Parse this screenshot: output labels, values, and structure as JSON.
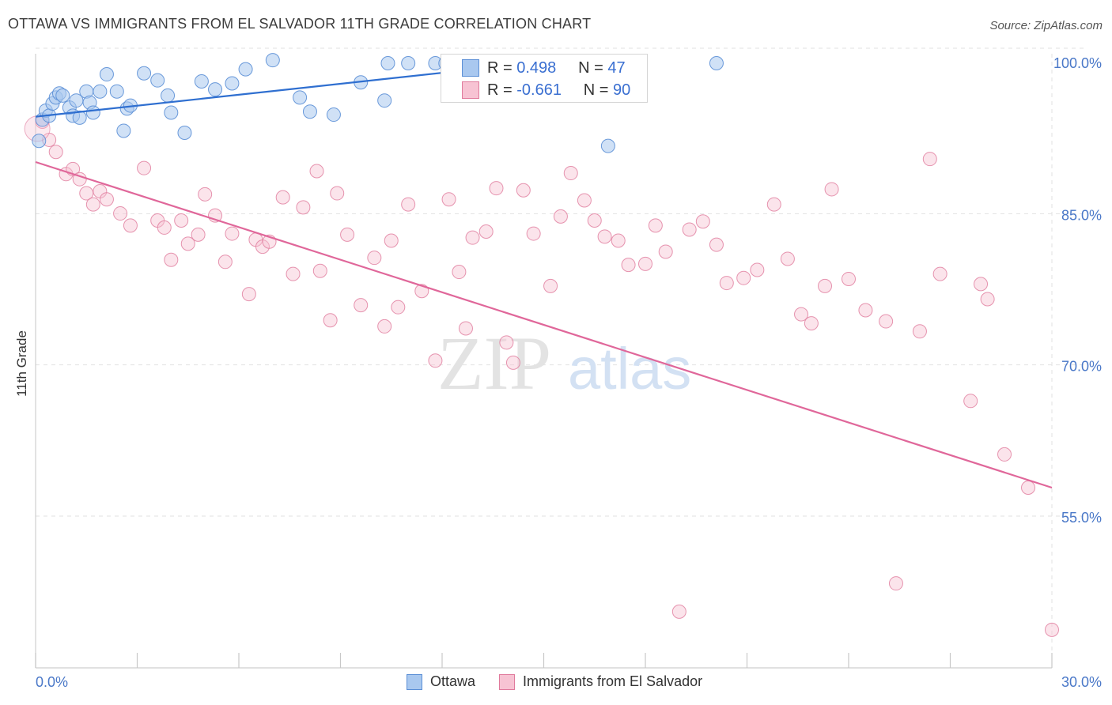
{
  "title": "OTTAWA VS IMMIGRANTS FROM EL SALVADOR 11TH GRADE CORRELATION CHART",
  "source": "Source: ZipAtlas.com",
  "watermark": {
    "zip": "ZIP",
    "atlas": "atlas"
  },
  "colors": {
    "ottawa_fill": "#a9c8ef",
    "ottawa_stroke": "#5b8fd6",
    "ottawa_line": "#2f6fd0",
    "elsal_fill": "#f7c3d3",
    "elsal_stroke": "#e07a9c",
    "elsal_line": "#e0679a",
    "tick_label": "#4a78c8"
  },
  "stats": {
    "r_label": "R =",
    "n_label": "N =",
    "rows": [
      {
        "r": "0.498",
        "n": "47"
      },
      {
        "r": "-0.661",
        "n": "90"
      }
    ]
  },
  "legend": [
    {
      "label": "Ottawa"
    },
    {
      "label": "Immigrants from El Salvador"
    }
  ],
  "chart_data": {
    "type": "scatter",
    "title": "OTTAWA VS IMMIGRANTS FROM EL SALVADOR 11TH GRADE CORRELATION CHART",
    "xlabel": "",
    "ylabel": "11th Grade",
    "xlim": [
      0,
      30
    ],
    "ylim": [
      38,
      101
    ],
    "x_tick_labels": [
      "0.0%",
      "30.0%"
    ],
    "y_ticks": [
      55,
      70,
      85,
      100
    ],
    "y_tick_labels": [
      "55.0%",
      "70.0%",
      "85.0%",
      "100.0%"
    ],
    "grid": true,
    "series": [
      {
        "name": "Ottawa",
        "r": 0.498,
        "n": 47,
        "trend": {
          "x": [
            0,
            16
          ],
          "y": [
            94.7,
            100.5
          ]
        },
        "points": [
          [
            0.1,
            92.3
          ],
          [
            0.2,
            94.4
          ],
          [
            0.3,
            95.3
          ],
          [
            0.4,
            94.8
          ],
          [
            0.5,
            96.0
          ],
          [
            0.6,
            96.6
          ],
          [
            0.7,
            97.0
          ],
          [
            0.8,
            96.8
          ],
          [
            1.0,
            95.6
          ],
          [
            1.1,
            94.8
          ],
          [
            1.2,
            96.3
          ],
          [
            1.3,
            94.6
          ],
          [
            1.5,
            97.2
          ],
          [
            1.6,
            96.1
          ],
          [
            1.7,
            95.1
          ],
          [
            1.9,
            97.2
          ],
          [
            2.1,
            98.9
          ],
          [
            2.4,
            97.2
          ],
          [
            2.6,
            93.3
          ],
          [
            2.7,
            95.5
          ],
          [
            2.8,
            95.8
          ],
          [
            3.2,
            99.0
          ],
          [
            3.6,
            98.3
          ],
          [
            3.9,
            96.8
          ],
          [
            4.0,
            95.1
          ],
          [
            4.4,
            93.1
          ],
          [
            4.9,
            98.2
          ],
          [
            5.3,
            97.4
          ],
          [
            5.8,
            98.0
          ],
          [
            6.2,
            99.4
          ],
          [
            7.0,
            100.3
          ],
          [
            7.8,
            96.6
          ],
          [
            8.1,
            95.2
          ],
          [
            8.8,
            94.9
          ],
          [
            9.6,
            98.1
          ],
          [
            10.3,
            96.3
          ],
          [
            10.4,
            100.0
          ],
          [
            11.0,
            100.0
          ],
          [
            11.8,
            100.0
          ],
          [
            12.1,
            100.0
          ],
          [
            13.2,
            98.9
          ],
          [
            14.2,
            99.4
          ],
          [
            15.0,
            100.0
          ],
          [
            15.8,
            100.0
          ],
          [
            16.9,
            91.8
          ],
          [
            17.4,
            100.0
          ],
          [
            20.1,
            100.0
          ]
        ]
      },
      {
        "name": "Immigrants from El Salvador",
        "r": -0.661,
        "n": 90,
        "trend": {
          "x": [
            0,
            30
          ],
          "y": [
            90.2,
            57.9
          ]
        },
        "points": [
          [
            0.2,
            94.2
          ],
          [
            0.4,
            92.4
          ],
          [
            0.6,
            91.2
          ],
          [
            0.9,
            89.0
          ],
          [
            1.1,
            89.5
          ],
          [
            1.3,
            88.5
          ],
          [
            1.5,
            87.1
          ],
          [
            1.7,
            86.0
          ],
          [
            1.9,
            87.3
          ],
          [
            2.1,
            86.5
          ],
          [
            2.5,
            85.1
          ],
          [
            2.8,
            83.9
          ],
          [
            3.2,
            89.6
          ],
          [
            3.6,
            84.4
          ],
          [
            3.8,
            83.7
          ],
          [
            4.0,
            80.5
          ],
          [
            4.3,
            84.4
          ],
          [
            4.5,
            82.1
          ],
          [
            4.8,
            83.0
          ],
          [
            5.0,
            87.0
          ],
          [
            5.3,
            84.9
          ],
          [
            5.6,
            80.3
          ],
          [
            5.8,
            83.1
          ],
          [
            6.3,
            77.1
          ],
          [
            6.5,
            82.5
          ],
          [
            6.7,
            81.8
          ],
          [
            6.9,
            82.3
          ],
          [
            7.3,
            86.7
          ],
          [
            7.6,
            79.1
          ],
          [
            7.9,
            85.7
          ],
          [
            8.3,
            89.3
          ],
          [
            8.4,
            79.4
          ],
          [
            8.7,
            74.5
          ],
          [
            8.9,
            87.1
          ],
          [
            9.2,
            83.0
          ],
          [
            9.6,
            76.0
          ],
          [
            10.0,
            80.7
          ],
          [
            10.3,
            73.9
          ],
          [
            10.5,
            82.4
          ],
          [
            10.7,
            75.8
          ],
          [
            11.0,
            86.0
          ],
          [
            11.4,
            77.4
          ],
          [
            11.8,
            70.5
          ],
          [
            12.2,
            86.5
          ],
          [
            12.5,
            79.3
          ],
          [
            12.7,
            73.7
          ],
          [
            12.9,
            82.7
          ],
          [
            13.3,
            83.3
          ],
          [
            13.6,
            87.6
          ],
          [
            13.9,
            72.3
          ],
          [
            14.1,
            70.3
          ],
          [
            14.4,
            87.4
          ],
          [
            14.7,
            83.1
          ],
          [
            15.2,
            77.9
          ],
          [
            15.5,
            84.8
          ],
          [
            15.8,
            89.1
          ],
          [
            16.2,
            86.4
          ],
          [
            16.5,
            84.4
          ],
          [
            16.8,
            82.8
          ],
          [
            17.2,
            82.4
          ],
          [
            17.5,
            80.0
          ],
          [
            18.0,
            80.1
          ],
          [
            18.3,
            83.9
          ],
          [
            18.6,
            81.3
          ],
          [
            19.0,
            45.6
          ],
          [
            19.3,
            83.5
          ],
          [
            19.7,
            84.3
          ],
          [
            20.1,
            82.0
          ],
          [
            20.4,
            78.2
          ],
          [
            20.9,
            78.7
          ],
          [
            21.3,
            79.5
          ],
          [
            21.8,
            86.0
          ],
          [
            22.2,
            80.6
          ],
          [
            22.6,
            75.1
          ],
          [
            22.9,
            74.2
          ],
          [
            23.3,
            77.9
          ],
          [
            23.5,
            87.5
          ],
          [
            24.0,
            78.6
          ],
          [
            24.5,
            75.5
          ],
          [
            25.1,
            74.4
          ],
          [
            25.4,
            48.4
          ],
          [
            26.1,
            73.4
          ],
          [
            26.4,
            90.5
          ],
          [
            26.7,
            79.1
          ],
          [
            27.6,
            66.5
          ],
          [
            27.9,
            78.1
          ],
          [
            28.1,
            76.6
          ],
          [
            28.6,
            61.2
          ],
          [
            29.3,
            57.9
          ],
          [
            30.0,
            43.8
          ]
        ]
      }
    ]
  }
}
